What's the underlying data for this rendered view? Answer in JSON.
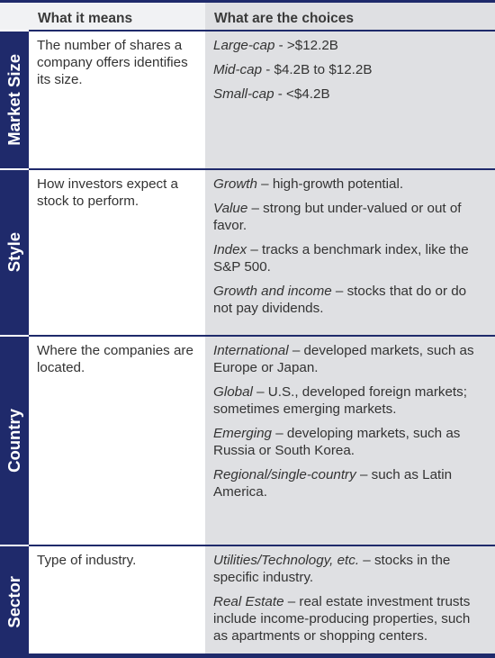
{
  "header": {
    "col_means": "What it means",
    "col_choices": "What are the choices"
  },
  "rows": [
    {
      "label": "Market Size",
      "means": "The number of shares a company offers identifies its size.",
      "choices": [
        {
          "term": "Large-cap",
          "text": " - >$12.2B"
        },
        {
          "term": "Mid-cap",
          "text": " - $4.2B to $12.2B"
        },
        {
          "term": "Small-cap",
          "text": " - <$4.2B"
        }
      ]
    },
    {
      "label": "Style",
      "means": "How investors expect a stock to perform.",
      "choices": [
        {
          "term": "Growth",
          "text": " – high-growth potential."
        },
        {
          "term": "Value",
          "text": " – strong but under-valued or out of favor."
        },
        {
          "term": "Index",
          "text": " – tracks a benchmark index, like the S&P 500."
        },
        {
          "term": "Growth and income",
          "text": " – stocks that do or do not pay dividends."
        }
      ]
    },
    {
      "label": "Country",
      "means": "Where the companies are located.",
      "choices": [
        {
          "term": "International",
          "text": " – developed markets, such as Europe or Japan."
        },
        {
          "term": "Global",
          "text": " – U.S., developed foreign markets; sometimes emerging markets."
        },
        {
          "term": "Emerging",
          "text": " – developing markets, such as Russia or South Korea."
        },
        {
          "term": "Regional/single-country",
          "text": " – such as Latin America."
        }
      ]
    },
    {
      "label": "Sector",
      "means": "Type of industry.",
      "choices": [
        {
          "term": "Utilities/Technology, etc.",
          "text": " – stocks in the specific industry."
        },
        {
          "term": "Real Estate",
          "text": " – real estate investment trusts include income-producing properties, such as apartments or shopping centers."
        }
      ]
    }
  ],
  "colors": {
    "navy": "#1f2a6b",
    "choices_bg": "#dfe0e3",
    "header_bg": "#f1f2f4"
  }
}
